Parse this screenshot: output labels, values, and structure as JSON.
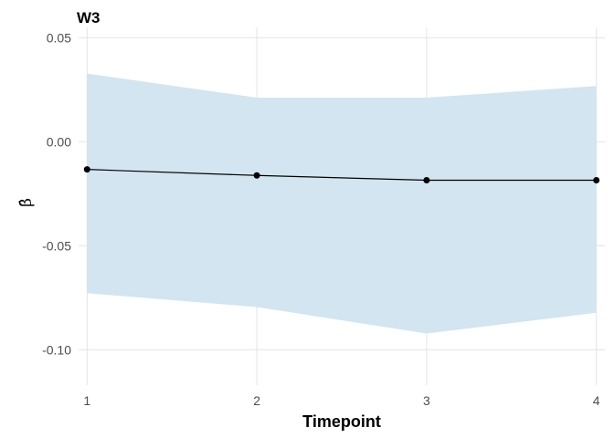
{
  "chart_data": {
    "type": "line",
    "title": "W3",
    "xlabel": "Timepoint",
    "ylabel": "β̂",
    "x": [
      1,
      2,
      3,
      4
    ],
    "xticks": [
      "1",
      "2",
      "3",
      "4"
    ],
    "yticks": [
      "0.05",
      "0.00",
      "-0.05",
      "-0.10"
    ],
    "ytick_values": [
      0.05,
      0.0,
      -0.05,
      -0.1
    ],
    "xlim": [
      0.95,
      4.05
    ],
    "ylim": [
      -0.117,
      0.055
    ],
    "grid": true,
    "series": [
      {
        "y": [
          -0.0133,
          -0.0162,
          -0.0185,
          -0.0185
        ],
        "lower": [
          -0.0728,
          -0.0795,
          -0.0922,
          -0.0822
        ],
        "upper": [
          0.0328,
          0.0212,
          0.0212,
          0.0268
        ],
        "line_color": "#000000",
        "ribbon_color": "#d2e5f0"
      }
    ]
  }
}
